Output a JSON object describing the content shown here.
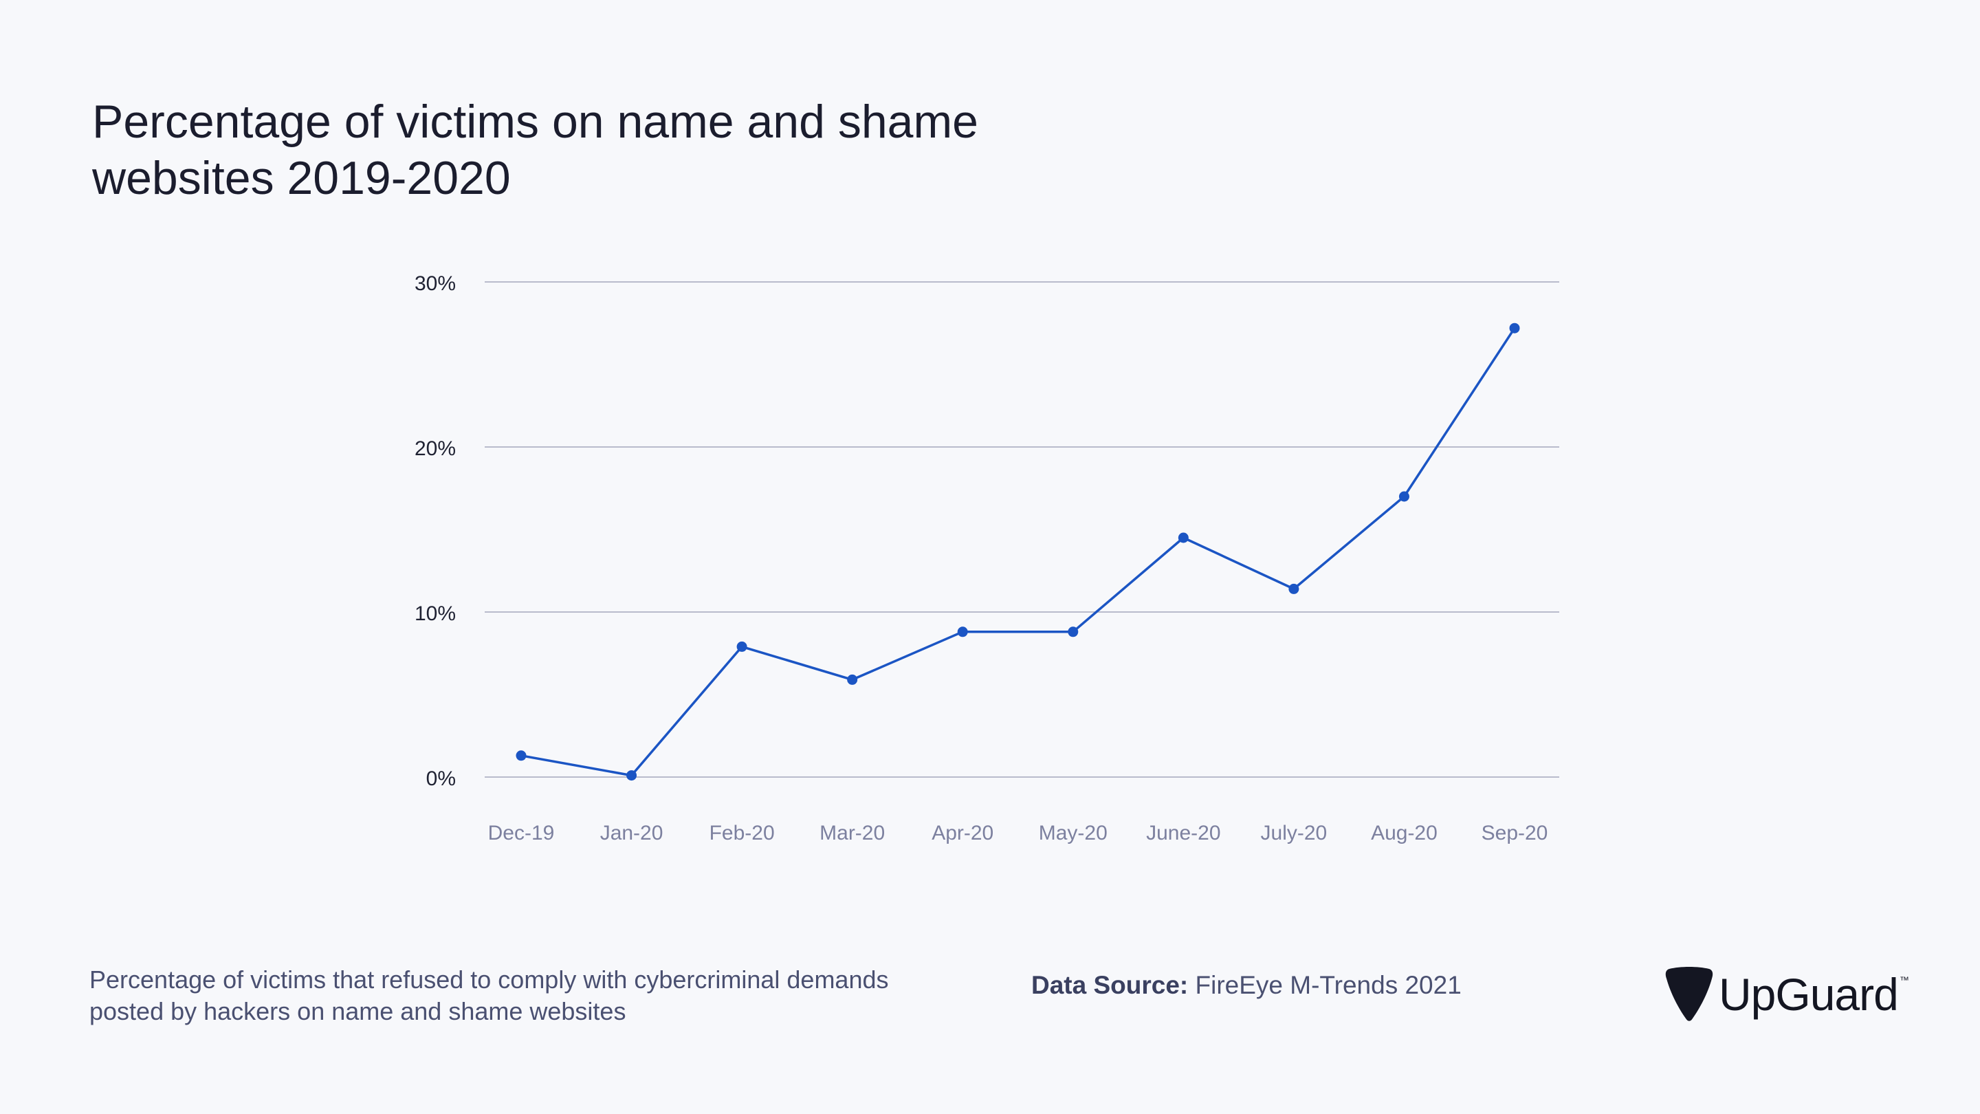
{
  "chart_data": {
    "type": "line",
    "title": "Percentage of victims on name and shame websites 2019-2020",
    "categories": [
      "Dec-19",
      "Jan-20",
      "Feb-20",
      "Mar-20",
      "Apr-20",
      "May-20",
      "June-20",
      "July-20",
      "Aug-20",
      "Sep-20"
    ],
    "series": [
      {
        "values": [
          1.3,
          0.1,
          7.9,
          5.9,
          8.8,
          8.8,
          14.5,
          11.4,
          17.0,
          27.2
        ]
      }
    ],
    "yticks": [
      "0%",
      "10%",
      "20%",
      "30%"
    ],
    "ylim": [
      0,
      30
    ],
    "grid": true,
    "line_color": "#1b55c4",
    "grid_color": "#b9bbcc"
  },
  "caption": "Percentage of victims that refused to comply with cybercriminal demands posted by hackers on name and shame websites",
  "source": {
    "label": "Data Source:",
    "text": "FireEye M-Trends 2021"
  },
  "logo": {
    "text": "UpGuard",
    "tm": "™",
    "icon": "guitar-pick-shield-icon"
  }
}
